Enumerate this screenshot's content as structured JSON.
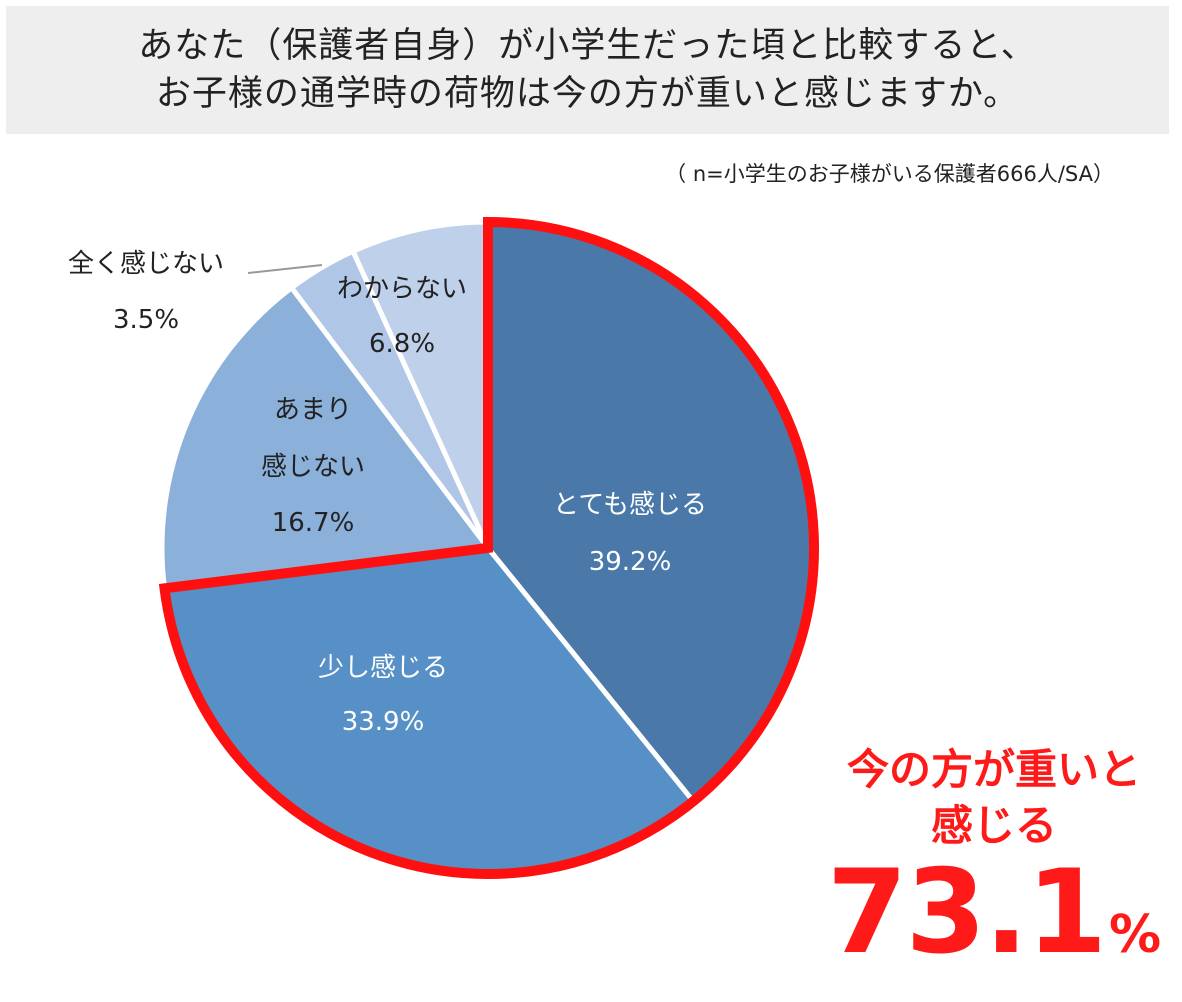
{
  "header": {
    "title_line1": "あなた（保護者自身）が小学生だった頃と比較すると、",
    "title_line2": "お子様の通学時の荷物は今の方が重いと感じますか。"
  },
  "note": "（ n=小学生のお子様がいる保護者666人/SA）",
  "chart_data": {
    "type": "pie",
    "slices": [
      {
        "label": "とても感じる",
        "value": 39.2,
        "value_label": "39.2%",
        "color": "#4a78a8"
      },
      {
        "label": "少し感じる",
        "value": 33.9,
        "value_label": "33.9%",
        "color": "#5690c6"
      },
      {
        "label": "あまり感じない",
        "value": 16.7,
        "value_label": "16.7%",
        "color": "#8bb0da"
      },
      {
        "label": "全く感じない",
        "value": 3.5,
        "value_label": "3.5%",
        "color": "#b0c6e6"
      },
      {
        "label": "わからない",
        "value": 6.8,
        "value_label": "6.8%",
        "color": "#bfd0ea"
      }
    ],
    "highlight": {
      "slices": [
        "とても感じる",
        "少し感じる"
      ],
      "outline_color": "#ff1010"
    }
  },
  "labels": {
    "totemo_line1": "とても感じる",
    "totemo_value": "39.2%",
    "sukoshi_line1": "少し感じる",
    "sukoshi_value": "33.9%",
    "amari_line1": "あまり",
    "amari_line2": "感じない",
    "amari_value": "16.7%",
    "mattaku_line1": "全く感じない",
    "mattaku_value": "3.5%",
    "wakaranai_line1": "わからない",
    "wakaranai_value": "6.8%"
  },
  "callout": {
    "line1": "今の方が重いと",
    "line2": "感じる",
    "number": "73.1",
    "unit": "%"
  },
  "colors": {
    "highlight_red": "#ff1a1a",
    "title_bg": "#eeeeee"
  }
}
